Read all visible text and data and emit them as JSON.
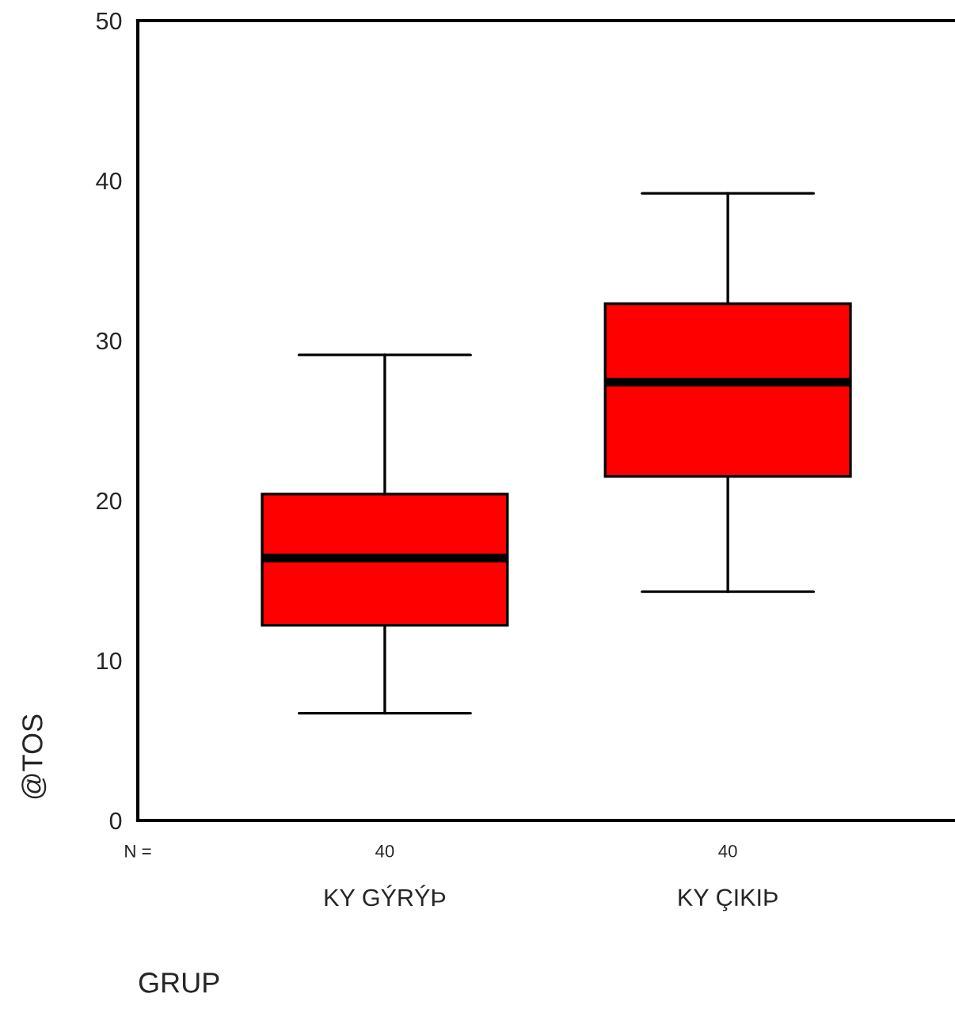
{
  "chart_data": {
    "type": "box",
    "xlabel": "GRUP",
    "ylabel": "@TOS",
    "categories": [
      "KY GÝRÝÞ",
      "KY ÇIKIÞ"
    ],
    "colors": [
      "#ff0000",
      "#ff0000"
    ],
    "boxes": [
      {
        "low": 6.7,
        "q1": 12.2,
        "median": 16.4,
        "q3": 20.4,
        "high": 29.1
      },
      {
        "low": 14.3,
        "q1": 21.5,
        "median": 27.4,
        "q3": 32.3,
        "high": 39.2
      }
    ],
    "ylim": [
      0,
      50
    ],
    "yticks": [
      0,
      10,
      20,
      30,
      40,
      50
    ],
    "annotations": [
      "N =",
      "40",
      "40"
    ]
  }
}
